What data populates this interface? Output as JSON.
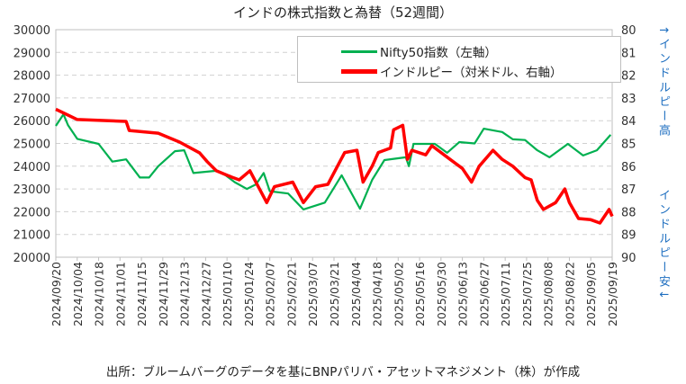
{
  "chart_data": {
    "type": "line",
    "title": "インドの株式指数と為替（52週間）",
    "x_unit": "days since 2024/09/20",
    "x_tick_labels": [
      "2024/09/20",
      "2024/10/04",
      "2024/10/18",
      "2024/11/01",
      "2024/11/15",
      "2024/11/29",
      "2024/12/13",
      "2024/12/27",
      "2025/01/10",
      "2025/01/24",
      "2025/02/07",
      "2025/02/21",
      "2025/03/07",
      "2025/03/21",
      "2025/04/04",
      "2025/04/18",
      "2025/05/02",
      "2025/05/16",
      "2025/05/30",
      "2025/06/13",
      "2025/06/27",
      "2025/07/11",
      "2025/07/25",
      "2025/08/08",
      "2025/08/22",
      "2025/09/05",
      "2025/09/19"
    ],
    "y_left": {
      "min": 20000,
      "max": 30000,
      "step": 1000,
      "ticks": [
        "30000",
        "29000",
        "28000",
        "27000",
        "26000",
        "25000",
        "24000",
        "23000",
        "22000",
        "21000",
        "20000"
      ]
    },
    "y_right": {
      "min": 80,
      "max": 90,
      "step": 1,
      "inverted": true,
      "ticks": [
        "80",
        "81",
        "82",
        "83",
        "84",
        "85",
        "86",
        "87",
        "88",
        "89",
        "90"
      ]
    },
    "grid": true,
    "legend_position": "top-right",
    "series": [
      {
        "name": "Nifty50指数（左軸）",
        "axis": "left",
        "color": "#00b050",
        "points": [
          [
            0,
            25770
          ],
          [
            5,
            26280
          ],
          [
            8,
            25800
          ],
          [
            14,
            25200
          ],
          [
            28,
            24980
          ],
          [
            37,
            24200
          ],
          [
            46,
            24300
          ],
          [
            55,
            23500
          ],
          [
            61,
            23500
          ],
          [
            67,
            24000
          ],
          [
            78,
            24660
          ],
          [
            84,
            24700
          ],
          [
            90,
            23700
          ],
          [
            105,
            23800
          ],
          [
            111,
            23600
          ],
          [
            117,
            23300
          ],
          [
            125,
            23000
          ],
          [
            131,
            23200
          ],
          [
            136,
            23700
          ],
          [
            140,
            22900
          ],
          [
            152,
            22800
          ],
          [
            162,
            22100
          ],
          [
            176,
            22400
          ],
          [
            187,
            23600
          ],
          [
            199,
            22130
          ],
          [
            207,
            23400
          ],
          [
            215,
            24270
          ],
          [
            229,
            24390
          ],
          [
            231,
            24000
          ],
          [
            234,
            24980
          ],
          [
            248,
            24980
          ],
          [
            256,
            24590
          ],
          [
            264,
            25060
          ],
          [
            274,
            25000
          ],
          [
            280,
            25650
          ],
          [
            292,
            25500
          ],
          [
            299,
            25180
          ],
          [
            307,
            25150
          ],
          [
            315,
            24700
          ],
          [
            323,
            24390
          ],
          [
            335,
            24980
          ],
          [
            345,
            24470
          ],
          [
            354,
            24700
          ],
          [
            363,
            25380
          ]
        ]
      },
      {
        "name": "インドルピー（対米ドル、右軸）",
        "axis": "right",
        "color": "#ff0000",
        "points": [
          [
            0,
            83.5
          ],
          [
            14,
            83.95
          ],
          [
            46,
            84.03
          ],
          [
            48,
            84.43
          ],
          [
            67,
            84.55
          ],
          [
            81,
            84.94
          ],
          [
            94,
            85.41
          ],
          [
            99,
            85.8
          ],
          [
            105,
            86.2
          ],
          [
            115,
            86.48
          ],
          [
            120,
            86.6
          ],
          [
            127,
            86.2
          ],
          [
            138,
            87.6
          ],
          [
            143,
            86.9
          ],
          [
            155,
            86.7
          ],
          [
            162,
            87.6
          ],
          [
            170,
            86.9
          ],
          [
            178,
            86.8
          ],
          [
            189,
            85.4
          ],
          [
            197,
            85.3
          ],
          [
            201,
            86.7
          ],
          [
            207,
            86.0
          ],
          [
            211,
            85.4
          ],
          [
            219,
            85.2
          ],
          [
            221,
            84.4
          ],
          [
            227,
            84.2
          ],
          [
            230,
            85.7
          ],
          [
            233,
            85.3
          ],
          [
            242,
            85.5
          ],
          [
            246,
            85.1
          ],
          [
            256,
            85.6
          ],
          [
            266,
            86.1
          ],
          [
            272,
            86.7
          ],
          [
            277,
            86.0
          ],
          [
            286,
            85.3
          ],
          [
            292,
            85.7
          ],
          [
            299,
            86.0
          ],
          [
            307,
            86.5
          ],
          [
            311,
            86.6
          ],
          [
            315,
            87.5
          ],
          [
            319,
            87.9
          ],
          [
            327,
            87.6
          ],
          [
            333,
            87.0
          ],
          [
            336,
            87.6
          ],
          [
            342,
            88.3
          ],
          [
            350,
            88.35
          ],
          [
            356,
            88.5
          ],
          [
            362,
            87.9
          ],
          [
            364,
            88.2
          ]
        ]
      }
    ]
  },
  "notes": {
    "top": "↑インドルピー高",
    "bottom": "インドルピー安↓"
  },
  "footer": "出所：ブルームバーグのデータを基にBNPパリバ・アセットマネジメント（株）が作成"
}
